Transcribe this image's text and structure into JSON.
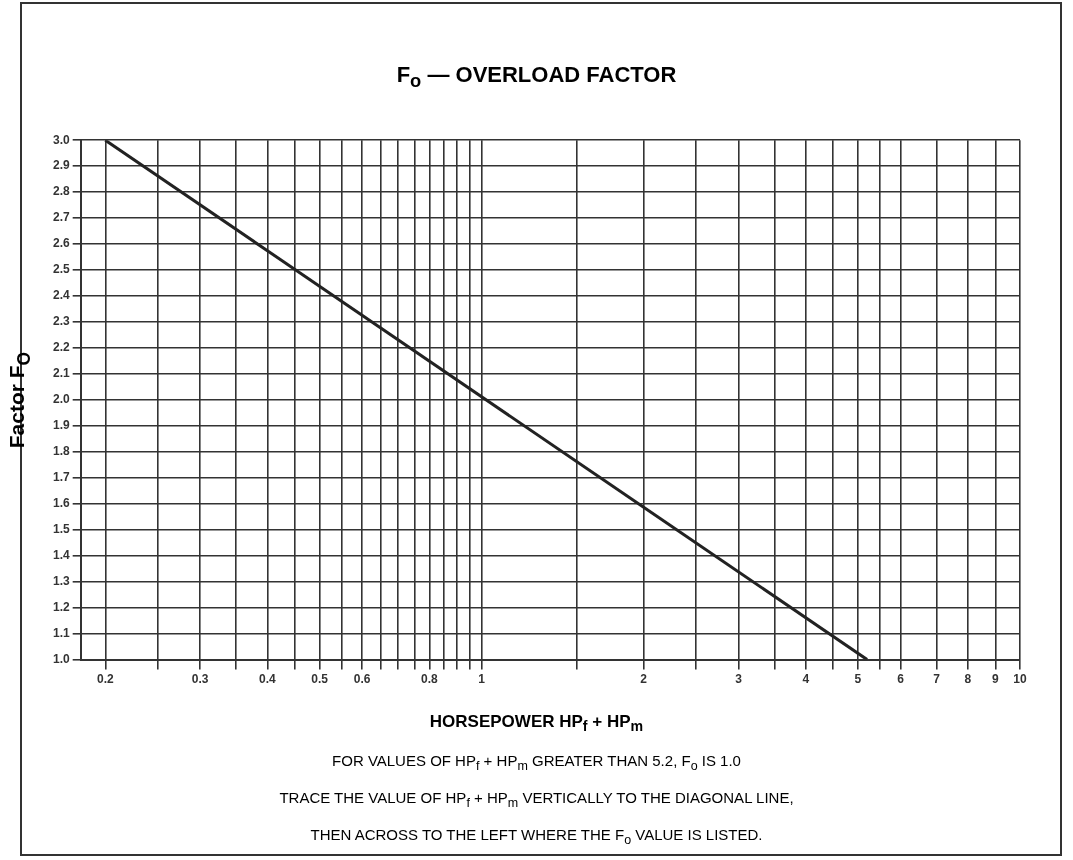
{
  "chart_data": {
    "type": "line",
    "title": "F$_{o}$ — OVERLOAD FACTOR",
    "xlabel": "HORSEPOWER HP$_{f}$ + HP$_{m}$",
    "ylabel": "Factor F$_{O}$",
    "annotations": [
      "FOR VALUES OF HP$_{f}$ + HP$_{m}$  GREATER THAN 5.2, F$_{o}$ IS 1.0",
      "TRACE THE VALUE OF HP$_{f}$ + HP$_{m}$ VERTICALLY TO THE DIAGONAL LINE,",
      "THEN ACROSS TO THE LEFT  WHERE THE F$_{o}$ VALUE IS LISTED."
    ],
    "log": "x",
    "grid": true,
    "marker": "none",
    "line_style": "solid",
    "x": [
      0.2,
      5.2
    ],
    "series": [
      {
        "color": "#222222",
        "values": [
          3.0,
          1.0
        ]
      }
    ],
    "xlim": [
      0.18,
      10
    ],
    "xticks": [
      0.2,
      {
        "value": 0.25,
        "label": null
      },
      0.3,
      {
        "value": 0.35,
        "label": null
      },
      0.4,
      {
        "value": 0.45,
        "label": null
      },
      0.5,
      {
        "value": 0.55,
        "label": null
      },
      0.6,
      {
        "value": 0.65,
        "label": null
      },
      {
        "value": 0.7,
        "label": null
      },
      {
        "value": 0.75,
        "label": null
      },
      0.8,
      {
        "value": 0.85,
        "label": null
      },
      {
        "value": 0.9,
        "label": null
      },
      {
        "value": 0.95,
        "label": null
      },
      1,
      {
        "value": 1.5,
        "label": null
      },
      2,
      {
        "value": 2.5,
        "label": null
      },
      3,
      {
        "value": 3.5,
        "label": null
      },
      4,
      {
        "value": 4.5,
        "label": null
      },
      5,
      {
        "value": 5.5,
        "label": null
      },
      6,
      7,
      8,
      9,
      10
    ],
    "ylim": [
      1.0,
      3.0
    ],
    "yticks": [
      {
        "value": 1.0,
        "label": "1.0"
      },
      1.1,
      1.2,
      1.3,
      1.4,
      1.5,
      1.6,
      1.7,
      1.8,
      1.9,
      {
        "value": 2.0,
        "label": "2.0"
      },
      2.1,
      2.2,
      2.3,
      2.4,
      2.5,
      2.6,
      2.7,
      2.8,
      2.9,
      {
        "value": 3.0,
        "label": "3.0"
      }
    ]
  }
}
